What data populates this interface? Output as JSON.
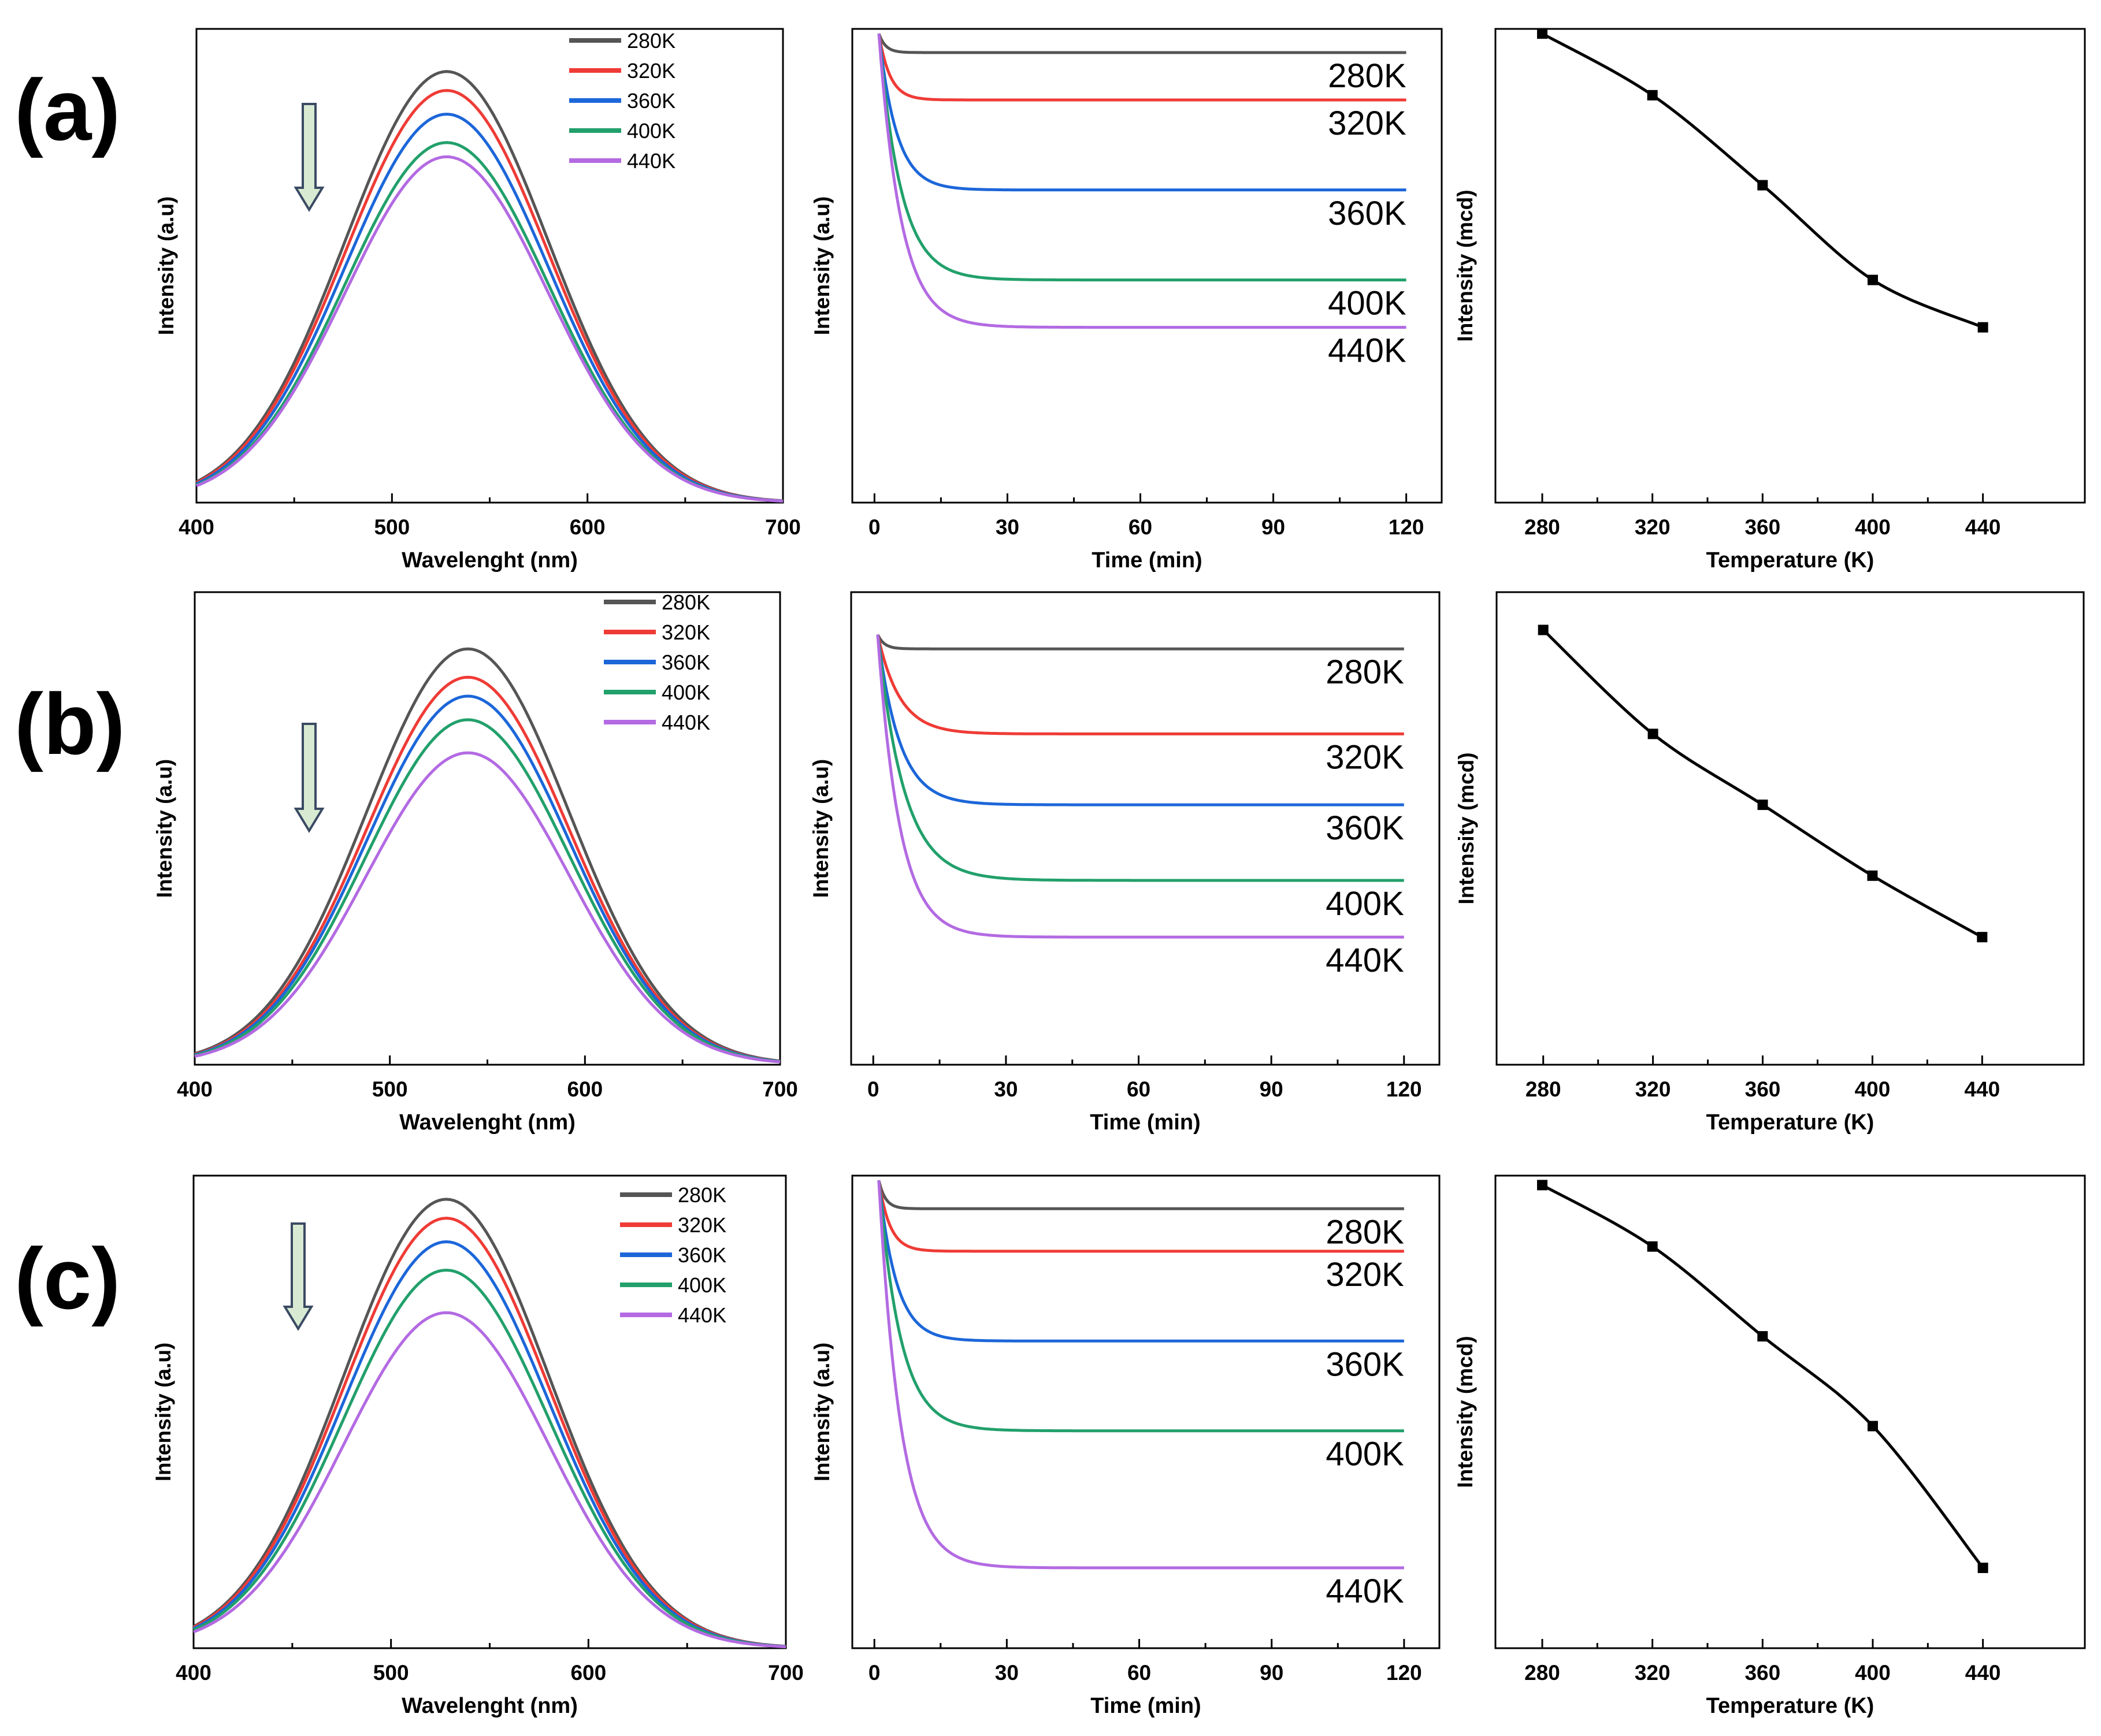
{
  "figure": {
    "row_labels": [
      "(a)",
      "(b)",
      "(c)"
    ],
    "colors": {
      "280K": "#555555",
      "320K": "#ef3b36",
      "360K": "#1c66d9",
      "400K": "#22a06b",
      "440K": "#b36ae2",
      "axis": "#000000",
      "trend": "#000000",
      "arrow_fill": "#d9ead3",
      "arrow_stroke": "#3a4a63"
    }
  },
  "chart_data": [
    {
      "id": "a-spectrum",
      "row": "(a)",
      "type": "line",
      "xlabel": "Wavelenght (nm)",
      "ylabel": "Intensity (a.u)",
      "xlim": [
        400,
        700
      ],
      "ylim": [
        0,
        1
      ],
      "xticks": [
        "400",
        "500",
        "600",
        "700"
      ],
      "legend_position": "top-right",
      "arrow": "down",
      "series": [
        {
          "name": "280K",
          "peak_x": 528,
          "peak": 0.91,
          "width": 52
        },
        {
          "name": "320K",
          "peak_x": 528,
          "peak": 0.87,
          "width": 52
        },
        {
          "name": "360K",
          "peak_x": 528,
          "peak": 0.82,
          "width": 52
        },
        {
          "name": "400K",
          "peak_x": 528,
          "peak": 0.76,
          "width": 52
        },
        {
          "name": "440K",
          "peak_x": 528,
          "peak": 0.73,
          "width": 52
        }
      ]
    },
    {
      "id": "a-decay",
      "row": "(a)",
      "type": "line",
      "xlabel": "Time (min)",
      "ylabel": "Intensity (a.u)",
      "xlim": [
        -5,
        128
      ],
      "ylim": [
        0,
        1
      ],
      "xticks": [
        "0",
        "30",
        "60",
        "90",
        "120"
      ],
      "start_x": 1,
      "start_y": 0.99,
      "end_x": 120,
      "series": [
        {
          "name": "280K",
          "label": "280K",
          "plateau": 0.95,
          "tau": 1.5
        },
        {
          "name": "320K",
          "label": "320K",
          "plateau": 0.85,
          "tau": 2.5
        },
        {
          "name": "360K",
          "label": "360K",
          "plateau": 0.66,
          "tau": 4
        },
        {
          "name": "400K",
          "label": "400K",
          "plateau": 0.47,
          "tau": 5
        },
        {
          "name": "440K",
          "label": "440K",
          "plateau": 0.37,
          "tau": 5
        }
      ]
    },
    {
      "id": "a-trend",
      "row": "(a)",
      "type": "line",
      "xlabel": "Temperature (K)",
      "ylabel": "Intensity (mcd)",
      "xlim": [
        263,
        477
      ],
      "ylim": [
        0,
        1
      ],
      "xticks": [
        "280",
        "320",
        "360",
        "400",
        "440"
      ],
      "points": [
        {
          "x": 280,
          "y": 0.99
        },
        {
          "x": 320,
          "y": 0.86
        },
        {
          "x": 360,
          "y": 0.67
        },
        {
          "x": 400,
          "y": 0.47
        },
        {
          "x": 440,
          "y": 0.37
        }
      ]
    },
    {
      "id": "b-spectrum",
      "row": "(b)",
      "type": "line",
      "xlabel": "Wavelenght (nm)",
      "ylabel": "Intensity (a.u)",
      "xlim": [
        400,
        700
      ],
      "ylim": [
        0,
        1
      ],
      "xticks": [
        "400",
        "500",
        "600",
        "700"
      ],
      "legend_position": "top-right",
      "arrow": "down",
      "series": [
        {
          "name": "280K",
          "peak_x": 540,
          "peak": 0.88,
          "width": 52
        },
        {
          "name": "320K",
          "peak_x": 540,
          "peak": 0.82,
          "width": 52
        },
        {
          "name": "360K",
          "peak_x": 540,
          "peak": 0.78,
          "width": 52
        },
        {
          "name": "400K",
          "peak_x": 540,
          "peak": 0.73,
          "width": 52
        },
        {
          "name": "440K",
          "peak_x": 540,
          "peak": 0.66,
          "width": 52
        }
      ]
    },
    {
      "id": "b-decay",
      "row": "(b)",
      "type": "line",
      "xlabel": "Time (min)",
      "ylabel": "Intensity (a.u)",
      "xlim": [
        -5,
        128
      ],
      "ylim": [
        0,
        1
      ],
      "xticks": [
        "0",
        "30",
        "60",
        "90",
        "120"
      ],
      "start_x": 1,
      "start_y": 0.91,
      "end_x": 120,
      "series": [
        {
          "name": "280K",
          "label": "280K",
          "plateau": 0.88,
          "tau": 1.5
        },
        {
          "name": "320K",
          "label": "320K",
          "plateau": 0.7,
          "tau": 5
        },
        {
          "name": "360K",
          "label": "360K",
          "plateau": 0.55,
          "tau": 5
        },
        {
          "name": "400K",
          "label": "400K",
          "plateau": 0.39,
          "tau": 6
        },
        {
          "name": "440K",
          "label": "440K",
          "plateau": 0.27,
          "tau": 5
        }
      ]
    },
    {
      "id": "b-trend",
      "row": "(b)",
      "type": "line",
      "xlabel": "Temperature (K)",
      "ylabel": "Intensity (mcd)",
      "xlim": [
        263,
        477
      ],
      "ylim": [
        0,
        1
      ],
      "xticks": [
        "280",
        "320",
        "360",
        "400",
        "440"
      ],
      "points": [
        {
          "x": 280,
          "y": 0.92
        },
        {
          "x": 320,
          "y": 0.7
        },
        {
          "x": 360,
          "y": 0.55
        },
        {
          "x": 400,
          "y": 0.4
        },
        {
          "x": 440,
          "y": 0.27
        }
      ]
    },
    {
      "id": "c-spectrum",
      "row": "(c)",
      "type": "line",
      "xlabel": "Wavelenght (nm)",
      "ylabel": "Intensity (a.u)",
      "xlim": [
        400,
        700
      ],
      "ylim": [
        0,
        1
      ],
      "xticks": [
        "400",
        "500",
        "600",
        "700"
      ],
      "legend_position": "top-right",
      "arrow": "down",
      "series": [
        {
          "name": "280K",
          "peak_x": 528,
          "peak": 0.95,
          "width": 52
        },
        {
          "name": "320K",
          "peak_x": 528,
          "peak": 0.91,
          "width": 52
        },
        {
          "name": "360K",
          "peak_x": 528,
          "peak": 0.86,
          "width": 52
        },
        {
          "name": "400K",
          "peak_x": 528,
          "peak": 0.8,
          "width": 52
        },
        {
          "name": "440K",
          "peak_x": 528,
          "peak": 0.71,
          "width": 52
        }
      ]
    },
    {
      "id": "c-decay",
      "row": "(c)",
      "type": "line",
      "xlabel": "Time (min)",
      "ylabel": "Intensity (a.u)",
      "xlim": [
        -5,
        128
      ],
      "ylim": [
        0,
        1
      ],
      "xticks": [
        "0",
        "30",
        "60",
        "90",
        "120"
      ],
      "start_x": 1,
      "start_y": 0.99,
      "end_x": 120,
      "series": [
        {
          "name": "280K",
          "label": "280K",
          "plateau": 0.93,
          "tau": 1.5
        },
        {
          "name": "320K",
          "label": "320K",
          "plateau": 0.84,
          "tau": 2.5
        },
        {
          "name": "360K",
          "label": "360K",
          "plateau": 0.65,
          "tau": 4
        },
        {
          "name": "400K",
          "label": "400K",
          "plateau": 0.46,
          "tau": 5
        },
        {
          "name": "440K",
          "label": "440K",
          "plateau": 0.17,
          "tau": 5
        }
      ]
    },
    {
      "id": "c-trend",
      "row": "(c)",
      "type": "line",
      "xlabel": "Temperature (K)",
      "ylabel": "Intensity (mcd)",
      "xlim": [
        263,
        477
      ],
      "ylim": [
        0,
        1
      ],
      "xticks": [
        "280",
        "320",
        "360",
        "400",
        "440"
      ],
      "points": [
        {
          "x": 280,
          "y": 0.98
        },
        {
          "x": 320,
          "y": 0.85
        },
        {
          "x": 360,
          "y": 0.66
        },
        {
          "x": 400,
          "y": 0.47
        },
        {
          "x": 440,
          "y": 0.17
        }
      ]
    }
  ]
}
